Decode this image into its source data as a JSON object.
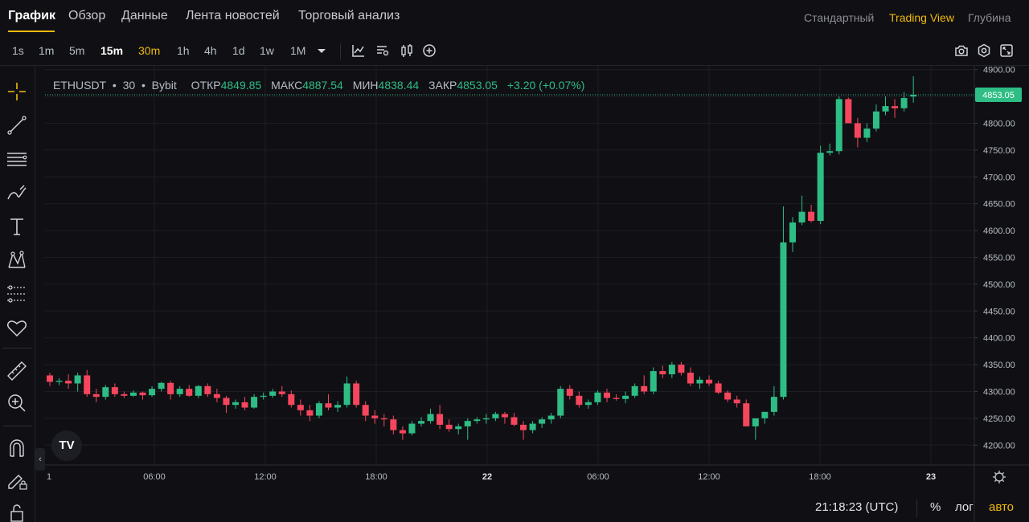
{
  "tabs": {
    "main": [
      "График",
      "Обзор",
      "Данные",
      "Лента новостей",
      "Торговый анализ"
    ],
    "views": [
      "Стандартный",
      "Trading View",
      "Глубина"
    ]
  },
  "toolbar": {
    "intervals": [
      "1s",
      "1m",
      "5m",
      "15m",
      "30m",
      "1h",
      "4h",
      "1d",
      "1w",
      "1M"
    ],
    "active_interval": "30m",
    "bold_interval": "15m"
  },
  "icons": {
    "toolbar": [
      "chevron-down-icon",
      "indicators-icon",
      "templates-icon",
      "candle-style-icon",
      "add-icon",
      "camera-icon",
      "settings-icon",
      "fullscreen-icon"
    ],
    "left": [
      "crosshair-icon",
      "trend-line-icon",
      "fib-lines-icon",
      "brush-icon",
      "text-icon",
      "pattern-icon",
      "prediction-icon",
      "heart-icon",
      "ruler-icon",
      "zoom-in-icon",
      "magnet-icon",
      "lock-drawing-icon",
      "lock-icon"
    ]
  },
  "legend": {
    "symbol": "ETHUSDT",
    "interval": "30",
    "exchange": "Bybit",
    "open_label": "ОТКР",
    "open": "4849.85",
    "high_label": "МАКС",
    "high": "4887.54",
    "low_label": "МИН",
    "low": "4838.44",
    "close_label": "ЗАКР",
    "close": "4853.05",
    "change": "+3.20 (+0.07%)"
  },
  "logo": "TV",
  "colors": {
    "up": "#2ebd85",
    "down": "#f6465d",
    "accent": "#f0b90b",
    "background": "#101014"
  },
  "chart_data": {
    "type": "candlestick",
    "symbol": "ETHUSDT",
    "interval": "30",
    "y_axis_ticks": [
      4900,
      4850,
      4800,
      4750,
      4700,
      4650,
      4600,
      4550,
      4500,
      4450,
      4400,
      4350,
      4300,
      4250,
      4200
    ],
    "y_axis_tick_labels": [
      "4900.00",
      "4850.00",
      "4800.00",
      "4750.00",
      "4700.00",
      "4650.00",
      "4600.00",
      "4550.00",
      "4500.00",
      "4450.00",
      "4400.00",
      "4350.00",
      "4300.00",
      "4250.00",
      "4200.00"
    ],
    "ylim": [
      4163,
      4907
    ],
    "x_axis_labels": [
      "1",
      "06:00",
      "12:00",
      "18:00",
      "22",
      "06:00",
      "12:00",
      "18:00",
      "23"
    ],
    "last_price": "4853.05",
    "grid": true,
    "candles": [
      [
        4330,
        4335,
        4310,
        4318
      ],
      [
        4318,
        4325,
        4312,
        4320
      ],
      [
        4320,
        4332,
        4305,
        4315
      ],
      [
        4315,
        4335,
        4300,
        4330
      ],
      [
        4330,
        4340,
        4290,
        4295
      ],
      [
        4295,
        4305,
        4280,
        4290
      ],
      [
        4290,
        4312,
        4285,
        4308
      ],
      [
        4308,
        4315,
        4290,
        4295
      ],
      [
        4295,
        4300,
        4288,
        4292
      ],
      [
        4292,
        4302,
        4290,
        4298
      ],
      [
        4298,
        4300,
        4285,
        4293
      ],
      [
        4293,
        4310,
        4290,
        4305
      ],
      [
        4305,
        4318,
        4300,
        4316
      ],
      [
        4316,
        4320,
        4285,
        4295
      ],
      [
        4295,
        4310,
        4290,
        4305
      ],
      [
        4305,
        4312,
        4290,
        4292
      ],
      [
        4292,
        4312,
        4288,
        4310
      ],
      [
        4310,
        4315,
        4290,
        4295
      ],
      [
        4295,
        4305,
        4280,
        4288
      ],
      [
        4288,
        4292,
        4260,
        4275
      ],
      [
        4275,
        4285,
        4268,
        4280
      ],
      [
        4280,
        4290,
        4265,
        4270
      ],
      [
        4270,
        4295,
        4268,
        4290
      ],
      [
        4290,
        4298,
        4285,
        4292
      ],
      [
        4292,
        4305,
        4288,
        4300
      ],
      [
        4300,
        4310,
        4290,
        4295
      ],
      [
        4295,
        4302,
        4270,
        4275
      ],
      [
        4275,
        4285,
        4255,
        4265
      ],
      [
        4265,
        4275,
        4245,
        4255
      ],
      [
        4255,
        4282,
        4250,
        4278
      ],
      [
        4278,
        4295,
        4265,
        4270
      ],
      [
        4270,
        4282,
        4262,
        4275
      ],
      [
        4275,
        4328,
        4270,
        4315
      ],
      [
        4315,
        4320,
        4270,
        4275
      ],
      [
        4275,
        4282,
        4245,
        4255
      ],
      [
        4255,
        4265,
        4240,
        4250
      ],
      [
        4250,
        4258,
        4235,
        4248
      ],
      [
        4248,
        4255,
        4220,
        4228
      ],
      [
        4228,
        4235,
        4210,
        4222
      ],
      [
        4222,
        4245,
        4218,
        4240
      ],
      [
        4240,
        4252,
        4235,
        4245
      ],
      [
        4245,
        4268,
        4240,
        4258
      ],
      [
        4258,
        4275,
        4230,
        4238
      ],
      [
        4238,
        4248,
        4225,
        4230
      ],
      [
        4230,
        4240,
        4220,
        4235
      ],
      [
        4235,
        4250,
        4210,
        4245
      ],
      [
        4245,
        4252,
        4240,
        4248
      ],
      [
        4248,
        4258,
        4240,
        4250
      ],
      [
        4250,
        4262,
        4245,
        4258
      ],
      [
        4258,
        4262,
        4240,
        4252
      ],
      [
        4252,
        4260,
        4235,
        4238
      ],
      [
        4238,
        4245,
        4210,
        4228
      ],
      [
        4228,
        4245,
        4222,
        4240
      ],
      [
        4240,
        4252,
        4232,
        4248
      ],
      [
        4248,
        4260,
        4240,
        4255
      ],
      [
        4255,
        4310,
        4250,
        4305
      ],
      [
        4305,
        4312,
        4285,
        4292
      ],
      [
        4292,
        4300,
        4270,
        4275
      ],
      [
        4275,
        4285,
        4268,
        4280
      ],
      [
        4280,
        4302,
        4275,
        4298
      ],
      [
        4298,
        4305,
        4280,
        4288
      ],
      [
        4288,
        4295,
        4283,
        4286
      ],
      [
        4286,
        4300,
        4278,
        4292
      ],
      [
        4292,
        4315,
        4288,
        4310
      ],
      [
        4310,
        4330,
        4295,
        4300
      ],
      [
        4300,
        4345,
        4295,
        4338
      ],
      [
        4338,
        4348,
        4325,
        4332
      ],
      [
        4332,
        4355,
        4325,
        4350
      ],
      [
        4350,
        4355,
        4330,
        4335
      ],
      [
        4335,
        4345,
        4310,
        4315
      ],
      [
        4315,
        4328,
        4305,
        4322
      ],
      [
        4322,
        4330,
        4310,
        4315
      ],
      [
        4315,
        4320,
        4295,
        4298
      ],
      [
        4298,
        4302,
        4280,
        4285
      ],
      [
        4285,
        4292,
        4270,
        4278
      ],
      [
        4278,
        4285,
        4240,
        4235
      ],
      [
        4235,
        4245,
        4210,
        4250
      ],
      [
        4250,
        4262,
        4240,
        4262
      ],
      [
        4262,
        4310,
        4255,
        4290
      ],
      [
        4290,
        4645,
        4285,
        4578
      ],
      [
        4578,
        4625,
        4560,
        4615
      ],
      [
        4615,
        4665,
        4610,
        4635
      ],
      [
        4635,
        4648,
        4615,
        4618
      ],
      [
        4618,
        4758,
        4612,
        4745
      ],
      [
        4745,
        4762,
        4740,
        4748
      ],
      [
        4748,
        4850,
        4742,
        4845
      ],
      [
        4845,
        4848,
        4800,
        4800
      ],
      [
        4800,
        4810,
        4755,
        4773
      ],
      [
        4773,
        4800,
        4765,
        4790
      ],
      [
        4790,
        4835,
        4785,
        4822
      ],
      [
        4822,
        4850,
        4815,
        4832
      ],
      [
        4832,
        4845,
        4810,
        4828
      ],
      [
        4828,
        4858,
        4822,
        4847
      ],
      [
        4849.85,
        4887.54,
        4838.44,
        4853.05
      ]
    ]
  },
  "bottom": {
    "clock": "21:18:23 (UTC)",
    "percent": "%",
    "log": "лог",
    "auto": "авто"
  }
}
